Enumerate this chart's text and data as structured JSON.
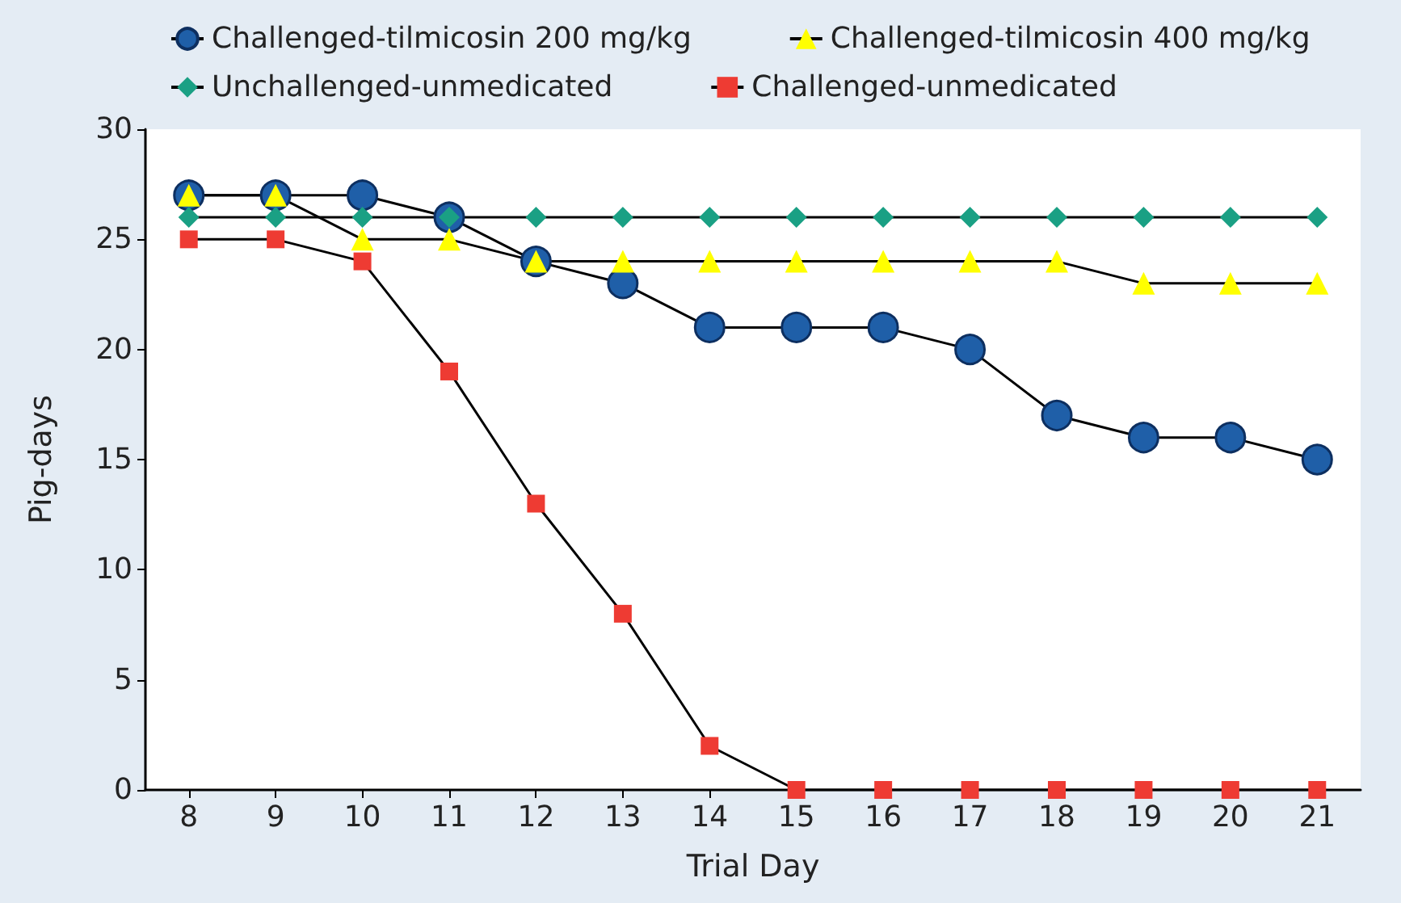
{
  "chart_data": {
    "type": "line",
    "xlabel": "Trial Day",
    "ylabel": "Pig-days",
    "categories": [
      "8",
      "9",
      "10",
      "11",
      "12",
      "13",
      "14",
      "15",
      "16",
      "17",
      "18",
      "19",
      "20",
      "21"
    ],
    "ylim": [
      0,
      30
    ],
    "yticks": [
      0,
      5,
      10,
      15,
      20,
      25,
      30
    ],
    "grid": false,
    "legend": "top",
    "line_style": "solid",
    "series": [
      {
        "name": "Challenged-tilmicosin 200 mg/kg",
        "color": "#1f5fa8",
        "marker": "circle",
        "values": [
          27,
          27,
          27,
          26,
          24,
          23,
          21,
          21,
          21,
          20,
          17,
          16,
          16,
          15
        ]
      },
      {
        "name": "Challenged-tilmicosin 400 mg/kg",
        "color": "#ffff00",
        "marker": "triangle",
        "values": [
          27,
          27,
          25,
          25,
          24,
          24,
          24,
          24,
          24,
          24,
          24,
          23,
          23,
          23
        ]
      },
      {
        "name": "Unchallenged-unmedicated",
        "color": "#1aa084",
        "marker": "diamond",
        "values": [
          26,
          26,
          26,
          26,
          26,
          26,
          26,
          26,
          26,
          26,
          26,
          26,
          26,
          26
        ]
      },
      {
        "name": "Challenged-unmedicated",
        "color": "#ee3b33",
        "marker": "square",
        "values": [
          25,
          25,
          24,
          19,
          13,
          8,
          2,
          0,
          0,
          0,
          0,
          0,
          0,
          0
        ]
      }
    ]
  }
}
